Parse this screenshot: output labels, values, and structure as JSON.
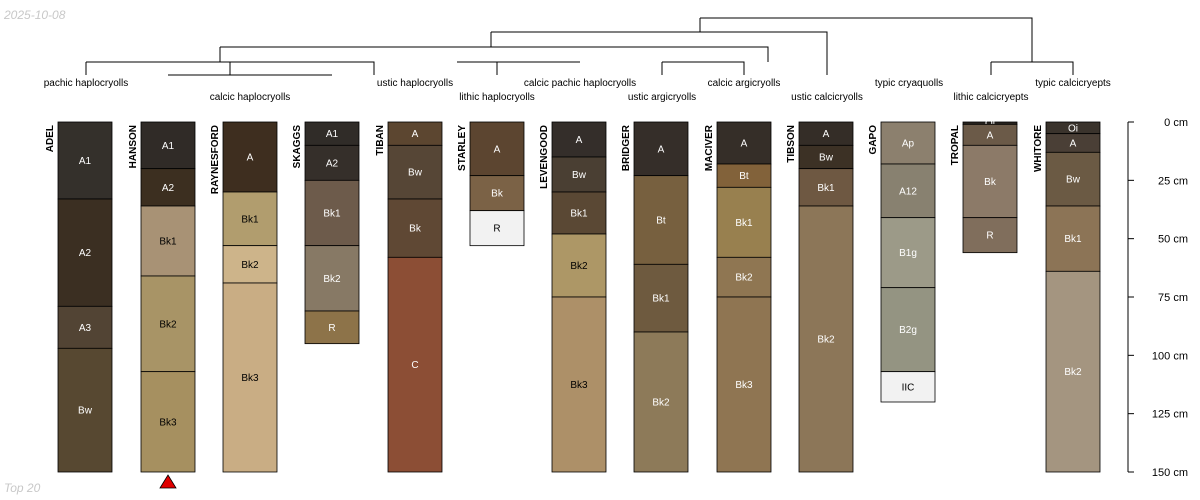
{
  "date": "2025-10-08",
  "footer": "Top 20",
  "depth_axis": {
    "ticks": [
      0,
      25,
      50,
      75,
      100,
      125,
      150
    ],
    "unit": "cm",
    "max_depth": 150
  },
  "highlight_profile": "HANSON",
  "profiles": [
    {
      "name": "ADEL",
      "taxon": "pachic haplocryolls",
      "bottom": 150,
      "horizons": [
        {
          "name": "A1",
          "top": 0,
          "bottom": 33,
          "color": "#34302b",
          "dark": true
        },
        {
          "name": "A2",
          "top": 33,
          "bottom": 79,
          "color": "#3b2f22",
          "dark": true
        },
        {
          "name": "A3",
          "top": 79,
          "bottom": 97,
          "color": "#524434",
          "dark": true
        },
        {
          "name": "Bw",
          "top": 97,
          "bottom": 150,
          "color": "#574831",
          "dark": true
        }
      ]
    },
    {
      "name": "HANSON",
      "taxon": "calcic haplocryolls",
      "bottom": 150,
      "horizons": [
        {
          "name": "A1",
          "top": 0,
          "bottom": 20,
          "color": "#302b27",
          "dark": true
        },
        {
          "name": "A2",
          "top": 20,
          "bottom": 36,
          "color": "#3c2f20",
          "dark": true
        },
        {
          "name": "Bk1",
          "top": 36,
          "bottom": 66,
          "color": "#a89275",
          "dark": false
        },
        {
          "name": "Bk2",
          "top": 66,
          "bottom": 107,
          "color": "#a89466",
          "dark": false
        },
        {
          "name": "Bk3",
          "top": 107,
          "bottom": 150,
          "color": "#a69060",
          "dark": false
        }
      ]
    },
    {
      "name": "RAYNESFORD",
      "taxon": "calcic haplocryolls",
      "bottom": 150,
      "horizons": [
        {
          "name": "A",
          "top": 0,
          "bottom": 30,
          "color": "#3e2e1f",
          "dark": true
        },
        {
          "name": "Bk1",
          "top": 30,
          "bottom": 53,
          "color": "#b19d6e",
          "dark": false
        },
        {
          "name": "Bk2",
          "top": 53,
          "bottom": 69,
          "color": "#cdb48a",
          "dark": false
        },
        {
          "name": "Bk3",
          "top": 69,
          "bottom": 150,
          "color": "#c9ad84",
          "dark": false
        }
      ]
    },
    {
      "name": "SKAGGS",
      "taxon": "calcic haplocryolls",
      "bottom": 95,
      "horizons": [
        {
          "name": "A1",
          "top": 0,
          "bottom": 10,
          "color": "#302c28",
          "dark": true
        },
        {
          "name": "A2",
          "top": 10,
          "bottom": 25,
          "color": "#352f2a",
          "dark": true
        },
        {
          "name": "Bk1",
          "top": 25,
          "bottom": 53,
          "color": "#6d5b4b",
          "dark": true
        },
        {
          "name": "Bk2",
          "top": 53,
          "bottom": 81,
          "color": "#877965",
          "dark": true
        },
        {
          "name": "R",
          "top": 81,
          "bottom": 95,
          "color": "#8d7349",
          "dark": true
        }
      ]
    },
    {
      "name": "TIBAN",
      "taxon": "ustic haplocryolls",
      "bottom": 150,
      "horizons": [
        {
          "name": "A",
          "top": 0,
          "bottom": 10,
          "color": "#5c4630",
          "dark": true
        },
        {
          "name": "Bw",
          "top": 10,
          "bottom": 33,
          "color": "#564636",
          "dark": true
        },
        {
          "name": "Bk",
          "top": 33,
          "bottom": 58,
          "color": "#5f4834",
          "dark": true
        },
        {
          "name": "C",
          "top": 58,
          "bottom": 150,
          "color": "#8c4e35",
          "dark": true
        }
      ]
    },
    {
      "name": "STARLEY",
      "taxon": "lithic haplocryolls",
      "bottom": 53,
      "horizons": [
        {
          "name": "A",
          "top": 0,
          "bottom": 23,
          "color": "#5c4530",
          "dark": true
        },
        {
          "name": "Bk",
          "top": 23,
          "bottom": 38,
          "color": "#7b6246",
          "dark": true
        },
        {
          "name": "R",
          "top": 38,
          "bottom": 53,
          "color": "#f2f2f2",
          "dark": false
        }
      ]
    },
    {
      "name": "LEVENGOOD",
      "taxon": "calcic pachic haplocryolls",
      "bottom": 150,
      "horizons": [
        {
          "name": "A",
          "top": 0,
          "bottom": 15,
          "color": "#342e2a",
          "dark": true
        },
        {
          "name": "Bw",
          "top": 15,
          "bottom": 30,
          "color": "#4a3f33",
          "dark": true
        },
        {
          "name": "Bk1",
          "top": 30,
          "bottom": 48,
          "color": "#5a4834",
          "dark": true
        },
        {
          "name": "Bk2",
          "top": 48,
          "bottom": 75,
          "color": "#ad9766",
          "dark": false
        },
        {
          "name": "Bk3",
          "top": 75,
          "bottom": 150,
          "color": "#ad9068",
          "dark": false
        }
      ]
    },
    {
      "name": "BRIDGER",
      "taxon": "ustic argicryolls",
      "bottom": 150,
      "horizons": [
        {
          "name": "A",
          "top": 0,
          "bottom": 23,
          "color": "#352e29",
          "dark": true
        },
        {
          "name": "Bt",
          "top": 23,
          "bottom": 61,
          "color": "#77603f",
          "dark": true
        },
        {
          "name": "Bk1",
          "top": 61,
          "bottom": 90,
          "color": "#6e5a3f",
          "dark": true
        },
        {
          "name": "Bk2",
          "top": 90,
          "bottom": 150,
          "color": "#8d7a59",
          "dark": true
        }
      ]
    },
    {
      "name": "MACIVER",
      "taxon": "calcic argicryolls",
      "bottom": 150,
      "horizons": [
        {
          "name": "A",
          "top": 0,
          "bottom": 18,
          "color": "#352e28",
          "dark": true
        },
        {
          "name": "Bt",
          "top": 18,
          "bottom": 28,
          "color": "#82623a",
          "dark": true
        },
        {
          "name": "Bk1",
          "top": 28,
          "bottom": 58,
          "color": "#98804f",
          "dark": true
        },
        {
          "name": "Bk2",
          "top": 58,
          "bottom": 75,
          "color": "#8f7652",
          "dark": true
        },
        {
          "name": "Bk3",
          "top": 75,
          "bottom": 150,
          "color": "#8f7552",
          "dark": true
        }
      ]
    },
    {
      "name": "TIBSON",
      "taxon": "ustic calcicryolls",
      "bottom": 150,
      "horizons": [
        {
          "name": "A",
          "top": 0,
          "bottom": 10,
          "color": "#342d27",
          "dark": true
        },
        {
          "name": "Bw",
          "top": 10,
          "bottom": 20,
          "color": "#3c3125",
          "dark": true
        },
        {
          "name": "Bk1",
          "top": 20,
          "bottom": 36,
          "color": "#6e5842",
          "dark": true
        },
        {
          "name": "Bk2",
          "top": 36,
          "bottom": 150,
          "color": "#8c7658",
          "dark": true
        }
      ]
    },
    {
      "name": "GAPO",
      "taxon": "typic cryaquolls",
      "bottom": 120,
      "horizons": [
        {
          "name": "Ap",
          "top": 0,
          "bottom": 18,
          "color": "#8c806e",
          "dark": true
        },
        {
          "name": "A12",
          "top": 18,
          "bottom": 41,
          "color": "#888170",
          "dark": true
        },
        {
          "name": "B1g",
          "top": 41,
          "bottom": 71,
          "color": "#9c9a88",
          "dark": true
        },
        {
          "name": "B2g",
          "top": 71,
          "bottom": 107,
          "color": "#949482",
          "dark": true
        },
        {
          "name": "IIC",
          "top": 107,
          "bottom": 120,
          "color": "#f2f2f2",
          "dark": false
        }
      ]
    },
    {
      "name": "TROPAL",
      "taxon": "lithic calcicryepts",
      "bottom": 56,
      "horizons": [
        {
          "name": "Oi",
          "top": 0,
          "bottom": 1,
          "color": "#2a2520",
          "dark": true
        },
        {
          "name": "A",
          "top": 1,
          "bottom": 10,
          "color": "#6b5a48",
          "dark": true
        },
        {
          "name": "Bk",
          "top": 10,
          "bottom": 41,
          "color": "#8c7a68",
          "dark": true
        },
        {
          "name": "R",
          "top": 41,
          "bottom": 56,
          "color": "#806e5c",
          "dark": true
        }
      ]
    },
    {
      "name": "WHITORE",
      "taxon": "typic calcicryepts",
      "bottom": 150,
      "horizons": [
        {
          "name": "Oi",
          "top": 0,
          "bottom": 5,
          "color": "#3a332c",
          "dark": true
        },
        {
          "name": "A",
          "top": 5,
          "bottom": 13,
          "color": "#4a3f36",
          "dark": true
        },
        {
          "name": "Bw",
          "top": 13,
          "bottom": 36,
          "color": "#6b5a44",
          "dark": true
        },
        {
          "name": "Bk1",
          "top": 36,
          "bottom": 64,
          "color": "#8c7456",
          "dark": true
        },
        {
          "name": "Bk2",
          "top": 64,
          "bottom": 150,
          "color": "#a49580",
          "dark": true
        }
      ]
    }
  ]
}
